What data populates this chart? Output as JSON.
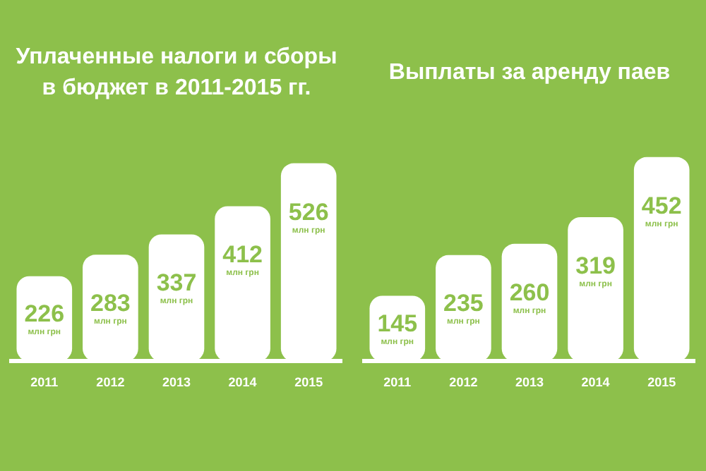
{
  "chart_data": [
    {
      "type": "bar",
      "title": "Уплаченные налоги и сборы в бюджет в 2011-2015 гг.",
      "categories": [
        "2011",
        "2012",
        "2013",
        "2014",
        "2015"
      ],
      "values": [
        226,
        283,
        337,
        412,
        526
      ],
      "color": "#ffffff",
      "value_labels": [
        "226 млн грн",
        "283 млн грн",
        "337 млн грн",
        "412 млн грн",
        "526 млн грн"
      ],
      "grid": false,
      "legend": false
    },
    {
      "type": "bar",
      "title": "Выплаты за аренду паев",
      "categories": [
        "2011",
        "2012",
        "2013",
        "2014",
        "2015"
      ],
      "values": [
        145,
        235,
        260,
        319,
        452
      ],
      "color": "#ffffff",
      "value_labels": [
        "145 млн грн",
        "235 млн грн",
        "260 млн грн",
        "319 млн грн",
        "452 млн грн"
      ],
      "grid": false,
      "legend": false
    }
  ]
}
